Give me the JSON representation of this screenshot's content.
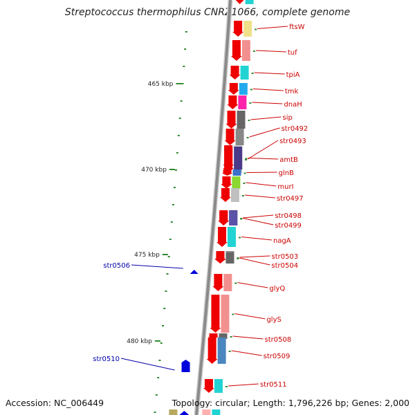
{
  "title": "Streptococcus thermophilus CNRZ1066, complete genome",
  "footer": {
    "accession": "Accession: NC_006449",
    "topology": "Topology: circular; Length: 1,796,226 bp; Genes: 2,000"
  },
  "colors": {
    "backbone": "#8a8a8a",
    "tick": "#2f8a2f",
    "forward_arrow": "#ee0000",
    "reverse_feature": "#0000dd",
    "forward_label": "#cc0000",
    "reverse_label": "#0000aa"
  },
  "scale_labels": [
    "465 kbp",
    "470 kbp",
    "475 kbp",
    "480 kbp"
  ],
  "forward_genes": [
    {
      "label": "ftsW",
      "color": "#f0e08a"
    },
    {
      "label": "tuf",
      "color": "#f29090"
    },
    {
      "label": "tpiA",
      "color": "#22d3d3"
    },
    {
      "label": "tmk",
      "color": "#22aaee"
    },
    {
      "label": "dnaH",
      "color": "#ff22aa"
    },
    {
      "label": "sip",
      "color": "#666666"
    },
    {
      "label": "str0492",
      "color": "#888888"
    },
    {
      "label": "str0493",
      "color": "#c8c8c8"
    },
    {
      "label": "amtB",
      "color": "#4a3a88"
    },
    {
      "label": "glnB",
      "color": "#3a70c8"
    },
    {
      "label": "murI",
      "color": "#8ad830"
    },
    {
      "label": "str0497",
      "color": "#c0c0c0"
    },
    {
      "label": "str0498",
      "color": "#443c88"
    },
    {
      "label": "str0499",
      "color": "#5a52a8"
    },
    {
      "label": "nagA",
      "color": "#22d3d3"
    },
    {
      "label": "str0503",
      "color": "#888888"
    },
    {
      "label": "str0504",
      "color": "#666666"
    },
    {
      "label": "glyQ",
      "color": "#f29090"
    },
    {
      "label": "glyS",
      "color": "#f29090"
    },
    {
      "label": "str0508",
      "color": "#666666"
    },
    {
      "label": "str0509",
      "color": "#4a86c0"
    },
    {
      "label": "str0511",
      "color": "#22d3d3"
    }
  ],
  "reverse_genes": [
    {
      "label": "str0506"
    },
    {
      "label": "str0510"
    }
  ]
}
